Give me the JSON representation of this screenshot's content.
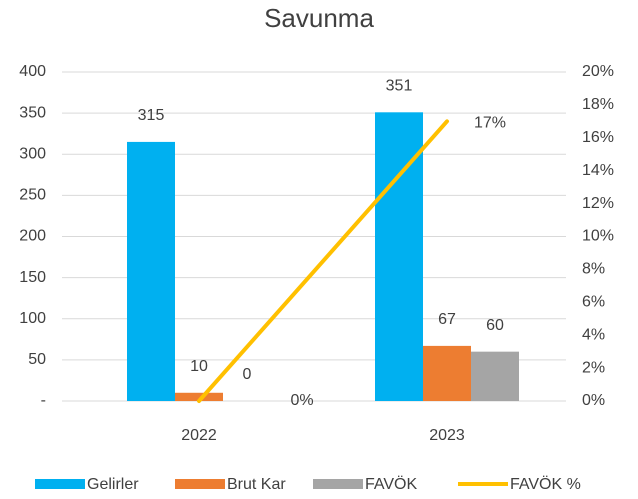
{
  "chart_data": {
    "type": "bar",
    "title": "Savunma",
    "categories": [
      "2022",
      "2023"
    ],
    "series": [
      {
        "name": "Gelirler",
        "color": "#00b0f0",
        "values": [
          315,
          351
        ]
      },
      {
        "name": "Brut Kar",
        "color": "#ed7d31",
        "values": [
          10,
          67
        ]
      },
      {
        "name": "FAVÖK",
        "color": "#a5a5a5",
        "values": [
          0,
          60
        ]
      },
      {
        "name": "FAVÖK %",
        "color": "#ffc000",
        "values": [
          0,
          17
        ],
        "value_labels": [
          "0%",
          "17%"
        ],
        "axis": "y2",
        "kind": "line"
      }
    ],
    "ylim": [
      0,
      400
    ],
    "yticks": [
      {
        "value": 0,
        "label": "-"
      },
      50,
      100,
      150,
      200,
      250,
      300,
      350,
      400
    ],
    "y2lim": [
      0,
      20
    ],
    "y2ticks": [
      {
        "value": 0,
        "label": "0%"
      },
      {
        "value": 2,
        "label": "2%"
      },
      {
        "value": 4,
        "label": "4%"
      },
      {
        "value": 6,
        "label": "6%"
      },
      {
        "value": 8,
        "label": "8%"
      },
      {
        "value": 10,
        "label": "10%"
      },
      {
        "value": 12,
        "label": "12%"
      },
      {
        "value": 14,
        "label": "14%"
      },
      {
        "value": 16,
        "label": "16%"
      },
      {
        "value": 18,
        "label": "18%"
      },
      {
        "value": 20,
        "label": "20%"
      }
    ],
    "grid": true,
    "legend": "bottom"
  }
}
